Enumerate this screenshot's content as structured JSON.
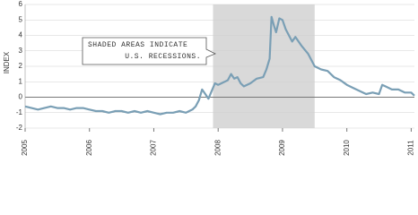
{
  "chart_data": {
    "type": "line",
    "y_label": "INDEX",
    "annotation": [
      "SHADED AREAS INDICATE",
      "U.S. RECESSIONS."
    ],
    "shaded_regions": [
      [
        2007.92,
        2009.5
      ]
    ],
    "xlim": [
      2005,
      2011.05
    ],
    "xticks": [
      2005,
      2006,
      2007,
      2008,
      2009,
      2010,
      2011
    ],
    "ylim": [
      -2,
      6
    ],
    "yticks": [
      -2,
      -1,
      0,
      1,
      2,
      3,
      4,
      5,
      6
    ],
    "grid": true,
    "series": [
      {
        "name": "Index",
        "color": "#7a9fb5",
        "x": [
          2005.0,
          2005.1,
          2005.2,
          2005.3,
          2005.4,
          2005.5,
          2005.6,
          2005.7,
          2005.8,
          2005.9,
          2006.0,
          2006.1,
          2006.2,
          2006.3,
          2006.4,
          2006.5,
          2006.6,
          2006.7,
          2006.8,
          2006.9,
          2007.0,
          2007.1,
          2007.2,
          2007.3,
          2007.4,
          2007.5,
          2007.6,
          2007.65,
          2007.7,
          2007.75,
          2007.8,
          2007.85,
          2007.9,
          2007.95,
          2008.0,
          2008.1,
          2008.15,
          2008.2,
          2008.25,
          2008.3,
          2008.35,
          2008.4,
          2008.5,
          2008.6,
          2008.7,
          2008.75,
          2008.8,
          2008.83,
          2008.87,
          2008.9,
          2008.95,
          2009.0,
          2009.05,
          2009.1,
          2009.15,
          2009.2,
          2009.3,
          2009.4,
          2009.5,
          2009.6,
          2009.7,
          2009.8,
          2009.9,
          2010.0,
          2010.1,
          2010.2,
          2010.3,
          2010.4,
          2010.5,
          2010.55,
          2010.6,
          2010.7,
          2010.8,
          2010.9,
          2011.0,
          2011.05
        ],
        "values": [
          -0.6,
          -0.7,
          -0.8,
          -0.7,
          -0.6,
          -0.7,
          -0.7,
          -0.8,
          -0.7,
          -0.7,
          -0.8,
          -0.9,
          -0.9,
          -1.0,
          -0.9,
          -0.9,
          -1.0,
          -0.9,
          -1.0,
          -0.9,
          -1.0,
          -1.1,
          -1.0,
          -1.0,
          -0.9,
          -1.0,
          -0.8,
          -0.6,
          -0.2,
          0.5,
          0.2,
          -0.1,
          0.4,
          0.9,
          0.8,
          1.0,
          1.1,
          1.5,
          1.2,
          1.3,
          0.9,
          0.7,
          0.9,
          1.2,
          1.3,
          1.8,
          2.5,
          5.2,
          4.6,
          4.2,
          5.1,
          5.0,
          4.4,
          4.0,
          3.6,
          3.9,
          3.3,
          2.8,
          2.0,
          1.8,
          1.7,
          1.3,
          1.1,
          0.8,
          0.6,
          0.4,
          0.2,
          0.3,
          0.2,
          0.8,
          0.7,
          0.5,
          0.5,
          0.3,
          0.3,
          0.1
        ]
      }
    ]
  }
}
